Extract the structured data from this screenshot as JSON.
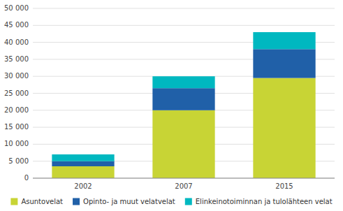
{
  "chart_data": {
    "type": "bar",
    "stacked": true,
    "grid": true,
    "categories": [
      "2002",
      "2007",
      "2015"
    ],
    "series": [
      {
        "name": "Asuntovelat",
        "color": "#c8d435",
        "values": [
          3500,
          20000,
          29500
        ]
      },
      {
        "name": "Opinto- ja muut velatvelat",
        "color": "#2060a8",
        "values": [
          1500,
          6500,
          8500
        ]
      },
      {
        "name": "Elinkeinotoiminnan ja tulolähteen velat",
        "color": "#00b8c0",
        "values": [
          2000,
          3500,
          5000
        ]
      }
    ],
    "ylim": [
      0,
      50000
    ],
    "yticks": [
      0,
      {
        "value": 5000,
        "label": "5 000"
      },
      {
        "value": 10000,
        "label": "10 000"
      },
      {
        "value": 15000,
        "label": "15 000"
      },
      {
        "value": 20000,
        "label": "20 000"
      },
      {
        "value": 25000,
        "label": "25 000"
      },
      {
        "value": 30000,
        "label": "30 000"
      },
      {
        "value": 35000,
        "label": "35 000"
      },
      {
        "value": 40000,
        "label": "40 000"
      },
      {
        "value": 45000,
        "label": "45 000"
      },
      {
        "value": 50000,
        "label": "50 000"
      }
    ]
  }
}
